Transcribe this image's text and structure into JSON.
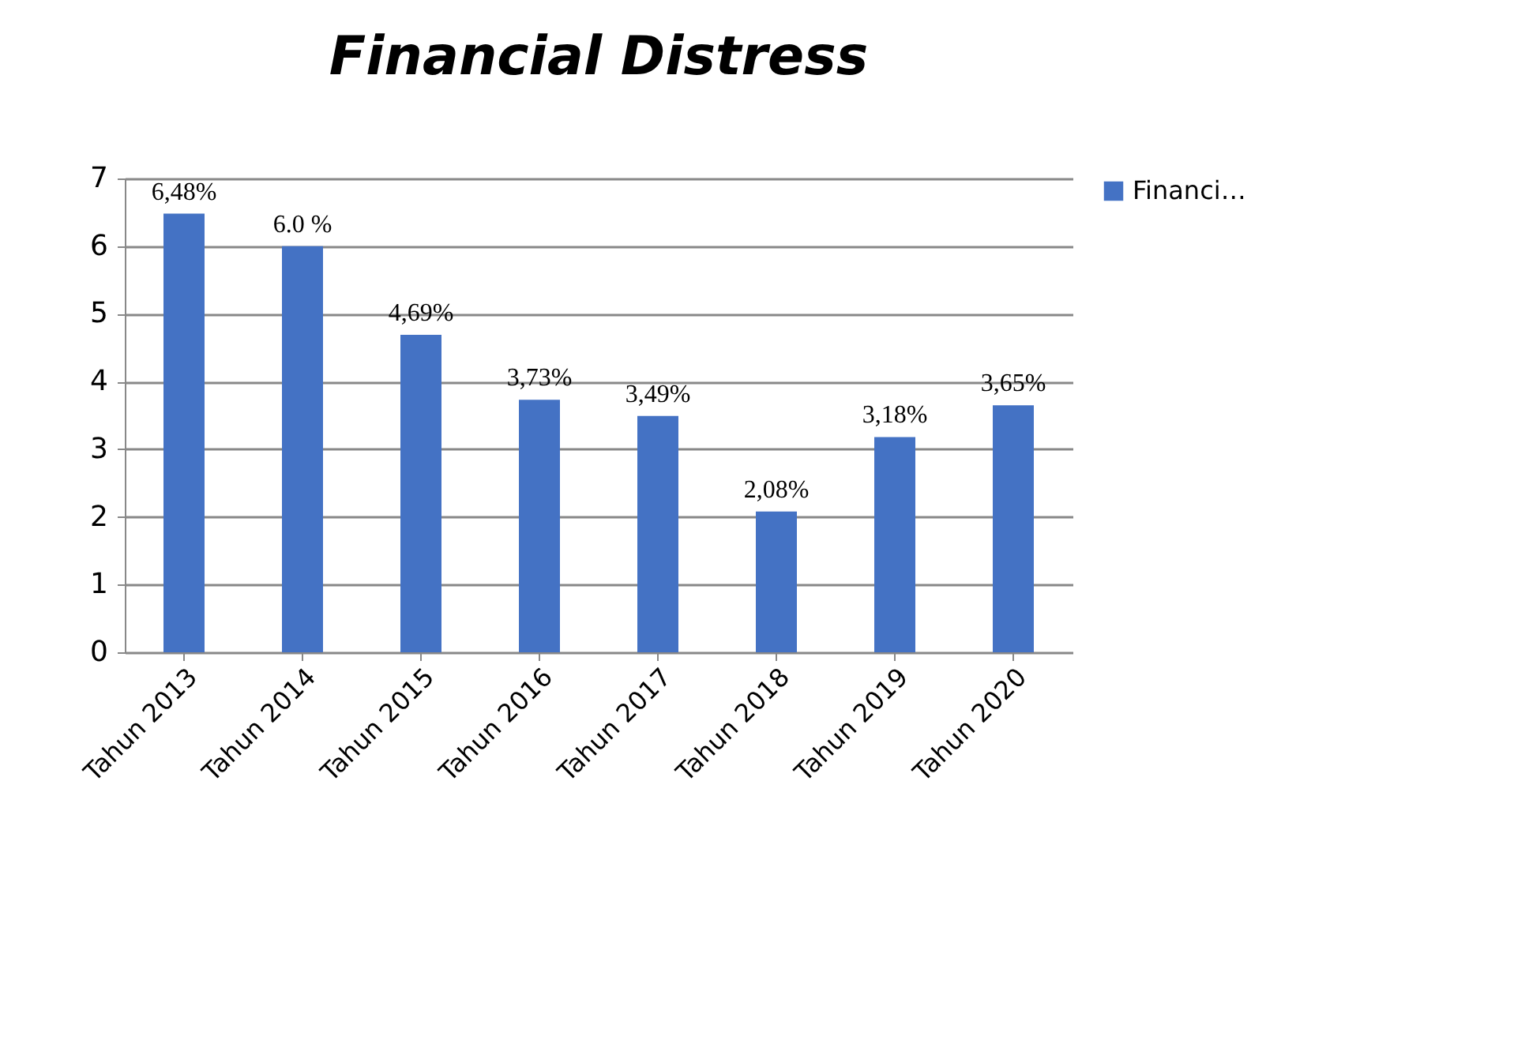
{
  "chart_data": {
    "type": "bar",
    "title": "Financial Distress",
    "categories": [
      "Tahun 2013",
      "Tahun 2014",
      "Tahun 2015",
      "Tahun 2016",
      "Tahun 2017",
      "Tahun 2018",
      "Tahun 2019",
      "Tahun 2020"
    ],
    "series": [
      {
        "name": "Financi…",
        "color": "#4472c4",
        "values": [
          6.48,
          6.0,
          4.69,
          3.73,
          3.49,
          2.08,
          3.18,
          3.65
        ],
        "value_labels": [
          "6,48%",
          "6.0 %",
          "4,69%",
          "3,73%",
          "3,49%",
          "2,08%",
          "3,18%",
          "3,65%"
        ]
      }
    ],
    "ylim": [
      0,
      7
    ],
    "yticks": [
      0,
      1,
      2,
      3,
      4,
      5,
      6,
      7
    ],
    "grid": "y",
    "legend": "right"
  }
}
